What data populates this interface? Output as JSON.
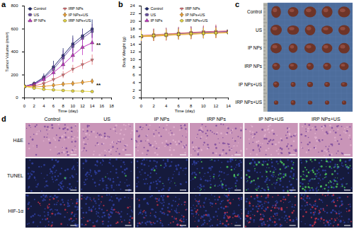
{
  "chart_data": [
    {
      "type": "line",
      "x_label": "Time (day)",
      "y_label": "Tumor Volume (mm³)",
      "x": [
        0,
        2,
        4,
        6,
        8,
        10,
        12,
        14
      ],
      "xlim": [
        0,
        18
      ],
      "xticks": [
        0,
        2,
        4,
        6,
        8,
        10,
        12,
        14,
        16,
        18
      ],
      "ylim": [
        0,
        800
      ],
      "yticks": [
        0,
        200,
        400,
        600,
        800
      ],
      "legend": "top-left",
      "series": [
        {
          "name": "Control",
          "color": "#1f2a6e",
          "marker": "circle",
          "values": [
            100,
            125,
            180,
            270,
            370,
            470,
            540,
            600
          ],
          "errors": [
            10,
            15,
            30,
            50,
            60,
            70,
            60,
            80
          ]
        },
        {
          "name": "US",
          "color": "#6b4fa8",
          "marker": "square",
          "values": [
            100,
            120,
            170,
            250,
            350,
            450,
            520,
            580
          ],
          "errors": [
            10,
            15,
            25,
            45,
            60,
            70,
            70,
            60
          ]
        },
        {
          "name": "IP NPs",
          "color": "#c233c2",
          "marker": "triangle",
          "values": [
            100,
            115,
            160,
            220,
            290,
            370,
            440,
            480
          ],
          "errors": [
            10,
            15,
            25,
            35,
            45,
            60,
            70,
            80
          ]
        },
        {
          "name": "IRP NPs",
          "color": "#e8757a",
          "marker": "triangle-down",
          "values": [
            100,
            105,
            125,
            160,
            200,
            250,
            290,
            330
          ],
          "errors": [
            8,
            12,
            18,
            25,
            30,
            35,
            40,
            45
          ]
        },
        {
          "name": "IP NPs+US",
          "color": "#f0a030",
          "marker": "diamond",
          "values": [
            100,
            95,
            100,
            110,
            120,
            125,
            135,
            145
          ],
          "errors": [
            8,
            10,
            12,
            15,
            15,
            20,
            20,
            20
          ]
        },
        {
          "name": "IRP NPs+US",
          "color": "#e8d840",
          "marker": "circle",
          "values": [
            100,
            85,
            75,
            70,
            65,
            60,
            58,
            55
          ],
          "errors": [
            8,
            10,
            10,
            10,
            10,
            10,
            8,
            8
          ]
        }
      ],
      "annotations": [
        {
          "text": "**",
          "x": 15.3,
          "y": 460
        },
        {
          "text": "**",
          "x": 15.3,
          "y": 110
        }
      ]
    },
    {
      "type": "line",
      "x_label": "Time (day)",
      "y_label": "Body Weight (g)",
      "x": [
        0,
        2,
        4,
        6,
        8,
        10,
        12,
        14
      ],
      "xlim": [
        0,
        14
      ],
      "xticks": [
        0,
        2,
        4,
        6,
        8,
        10,
        12,
        14
      ],
      "ylim": [
        0,
        24
      ],
      "yticks": [
        0,
        2,
        4,
        6,
        8,
        10,
        12,
        14,
        16,
        18,
        20,
        22,
        24
      ],
      "legend": "top-left",
      "series": [
        {
          "name": "Control",
          "color": "#1f2a6e",
          "marker": "circle",
          "values": [
            16.2,
            16.4,
            16.6,
            16.8,
            17.0,
            17.1,
            17.2,
            17.3
          ],
          "errors": [
            1.5,
            1.5,
            1.6,
            1.5,
            1.6,
            1.5,
            1.6,
            1.5
          ]
        },
        {
          "name": "US",
          "color": "#6b4fa8",
          "marker": "square",
          "values": [
            16.0,
            16.3,
            16.5,
            16.7,
            16.9,
            17.0,
            17.2,
            17.4
          ],
          "errors": [
            1.4,
            1.5,
            1.5,
            1.6,
            1.5,
            1.6,
            1.5,
            1.4
          ]
        },
        {
          "name": "IP NPs",
          "color": "#c233c2",
          "marker": "triangle",
          "values": [
            16.1,
            16.2,
            16.4,
            16.6,
            16.8,
            17.0,
            17.1,
            17.2
          ],
          "errors": [
            1.3,
            1.4,
            1.5,
            1.4,
            1.5,
            1.4,
            1.5,
            1.5
          ]
        },
        {
          "name": "IRP NPs",
          "color": "#e8757a",
          "marker": "triangle-down",
          "values": [
            16.3,
            16.5,
            16.7,
            16.9,
            17.1,
            17.3,
            17.4,
            17.5
          ],
          "errors": [
            1.5,
            1.6,
            1.5,
            1.6,
            1.5,
            1.6,
            1.7,
            1.8
          ]
        },
        {
          "name": "IP NPs+US",
          "color": "#f0a030",
          "marker": "diamond",
          "values": [
            16.0,
            16.1,
            16.3,
            16.5,
            16.6,
            16.8,
            16.9,
            17.0
          ],
          "errors": [
            1.2,
            1.3,
            1.4,
            1.3,
            1.4,
            1.3,
            1.4,
            1.3
          ]
        },
        {
          "name": "IRP NPs+US",
          "color": "#e8d840",
          "marker": "circle",
          "values": [
            16.2,
            16.3,
            16.5,
            16.6,
            16.8,
            16.9,
            17.0,
            17.1
          ],
          "errors": [
            1.3,
            1.4,
            1.3,
            1.4,
            1.3,
            1.4,
            1.3,
            1.4
          ]
        }
      ]
    }
  ],
  "panel_labels": [
    "a",
    "b",
    "c",
    "d"
  ],
  "photo": {
    "rows": [
      "Control",
      "US",
      "IP NPs",
      "IRP NPs",
      "IP NPs+US",
      "IRP NPs+US"
    ]
  },
  "micrographs": {
    "columns": [
      "Control",
      "US",
      "IP NPs",
      "IRP NPs",
      "IP NPs+US",
      "IRP NPs+US"
    ],
    "rows": [
      "H&E",
      "TUNEL",
      "HIF-1α"
    ]
  }
}
